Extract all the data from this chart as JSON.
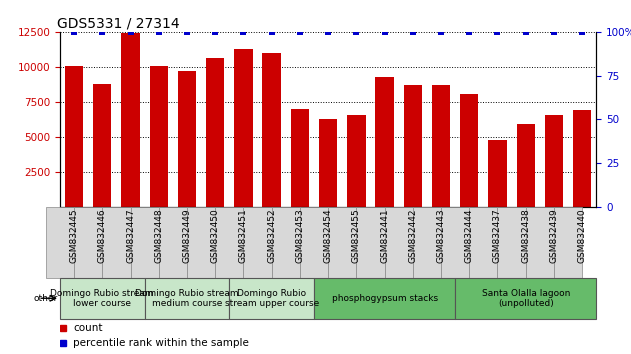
{
  "title": "GDS5331 / 27314",
  "samples": [
    "GSM832445",
    "GSM832446",
    "GSM832447",
    "GSM832448",
    "GSM832449",
    "GSM832450",
    "GSM832451",
    "GSM832452",
    "GSM832453",
    "GSM832454",
    "GSM832455",
    "GSM832441",
    "GSM832442",
    "GSM832443",
    "GSM832444",
    "GSM832437",
    "GSM832438",
    "GSM832439",
    "GSM832440"
  ],
  "counts": [
    10100,
    8800,
    12400,
    10100,
    9700,
    10600,
    11300,
    11000,
    7000,
    6300,
    6600,
    9300,
    8700,
    8700,
    8100,
    4800,
    5900,
    6600,
    6900
  ],
  "percentile": [
    100,
    100,
    100,
    100,
    100,
    100,
    100,
    100,
    100,
    100,
    100,
    100,
    100,
    100,
    100,
    100,
    100,
    100,
    100
  ],
  "groups": [
    {
      "label": "Domingo Rubio stream\nlower course",
      "start": 0,
      "end": 3,
      "color": "#c8e6c9"
    },
    {
      "label": "Domingo Rubio stream\nmedium course",
      "start": 3,
      "end": 6,
      "color": "#c8e6c9"
    },
    {
      "label": "Domingo Rubio\nstream upper course",
      "start": 6,
      "end": 9,
      "color": "#c8e6c9"
    },
    {
      "label": "phosphogypsum stacks",
      "start": 9,
      "end": 14,
      "color": "#66bb6a"
    },
    {
      "label": "Santa Olalla lagoon\n(unpolluted)",
      "start": 14,
      "end": 19,
      "color": "#66bb6a"
    }
  ],
  "bar_color": "#cc0000",
  "dot_color": "#0000cc",
  "ylim_left": [
    0,
    12500
  ],
  "ylim_right": [
    0,
    100
  ],
  "yticks_left": [
    2500,
    5000,
    7500,
    10000,
    12500
  ],
  "yticks_right": [
    0,
    25,
    50,
    75,
    100
  ],
  "bar_width": 0.65,
  "dot_size": 18,
  "tick_fontsize": 7.5,
  "xlabel_fontsize": 6.5,
  "title_fontsize": 10,
  "group_fontsize": 6.5,
  "legend_fontsize": 7.5,
  "other_label": "other"
}
